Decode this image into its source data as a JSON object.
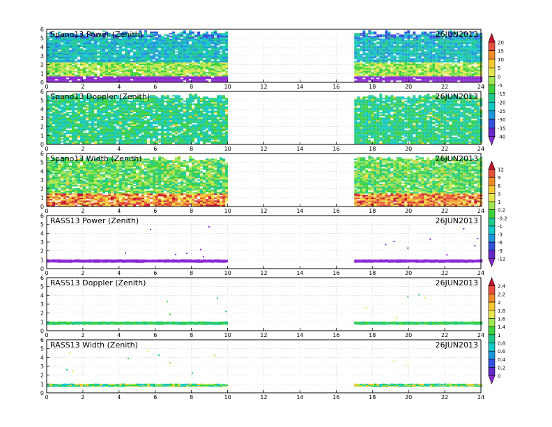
{
  "figure": {
    "panels": [
      {
        "title": "Spano13 Power (Zenith)",
        "date": "26JUN2013",
        "kind": "spano",
        "colorbar": 0
      },
      {
        "title": "Spano13 Doppler (Zenith)",
        "date": "26JUN2013",
        "kind": "spano",
        "colorbar": 0
      },
      {
        "title": "Spano13 Width (Zenith)",
        "date": "26JUN2013",
        "kind": "spano",
        "colorbar": 1
      },
      {
        "title": "RASS13 Power (Zenith)",
        "date": "26JUN2013",
        "kind": "rass",
        "colorbar": 1
      },
      {
        "title": "RASS13 Doppler (Zenith)",
        "date": "26JUN2013",
        "kind": "rass",
        "colorbar": 2
      },
      {
        "title": "RASS13 Width (Zenith)",
        "date": "26JUN2013",
        "kind": "rass",
        "colorbar": 2
      }
    ],
    "colorbars": [
      {
        "labels": [
          "20",
          "15",
          "10",
          "5",
          "0",
          "-5",
          "-15",
          "-20",
          "-25",
          "-30",
          "-35",
          "-40"
        ],
        "colors": [
          "#c8142c",
          "#e6503c",
          "#f08c28",
          "#f5c832",
          "#e6e650",
          "#a0e650",
          "#3cd23c",
          "#1ec88c",
          "#14c8c8",
          "#1e96dc",
          "#3250dc",
          "#6428c8",
          "#8c28d2"
        ]
      },
      {
        "labels": [
          "12",
          "9",
          "6",
          "3",
          "1",
          "0.2",
          "-0.2",
          "-1",
          "-3",
          "-6",
          "-9",
          "-12"
        ],
        "colors": [
          "#c8142c",
          "#e6503c",
          "#f08c28",
          "#f5c832",
          "#e6e650",
          "#a0e650",
          "#3cd23c",
          "#1ec88c",
          "#14c8c8",
          "#1e96dc",
          "#3250dc",
          "#6428c8",
          "#8c28d2"
        ]
      },
      {
        "labels": [
          "2.4",
          "2.2",
          "2",
          "1.8",
          "1.6",
          "1.4",
          "1",
          "0.8",
          "0.6",
          "0.4",
          "0.2",
          "0"
        ],
        "colors": [
          "#c8142c",
          "#e6503c",
          "#f08c28",
          "#f5c832",
          "#e6e650",
          "#a0e650",
          "#3cd23c",
          "#1ec88c",
          "#14c8c8",
          "#1e96dc",
          "#3250dc",
          "#6428c8",
          "#8c28d2"
        ]
      }
    ]
  },
  "chart_data": [
    {
      "type": "heatmap",
      "title": "Spano13 Power (Zenith)",
      "annotation": "26JUN2013",
      "xlim": [
        0,
        24
      ],
      "ylim": [
        0,
        6
      ],
      "xticks": [
        0,
        2,
        4,
        6,
        8,
        10,
        12,
        14,
        16,
        18,
        20,
        22,
        24
      ],
      "yticks": [
        0,
        1,
        2,
        3,
        4,
        5,
        6
      ],
      "grid": true,
      "data_segments_hours": [
        [
          0,
          10
        ],
        [
          17,
          24
        ]
      ],
      "color_scale": [
        -40,
        20
      ]
    },
    {
      "type": "heatmap",
      "title": "Spano13 Doppler (Zenith)",
      "annotation": "26JUN2013",
      "xlim": [
        0,
        24
      ],
      "ylim": [
        0,
        6
      ],
      "xticks": [
        0,
        2,
        4,
        6,
        8,
        10,
        12,
        14,
        16,
        18,
        20,
        22,
        24
      ],
      "yticks": [
        0,
        1,
        2,
        3,
        4,
        5,
        6
      ],
      "grid": true,
      "data_segments_hours": [
        [
          0,
          10
        ],
        [
          17,
          24
        ]
      ],
      "color_scale": [
        -40,
        20
      ]
    },
    {
      "type": "heatmap",
      "title": "Spano13 Width (Zenith)",
      "annotation": "26JUN2013",
      "xlim": [
        0,
        24
      ],
      "ylim": [
        0,
        6
      ],
      "xticks": [
        0,
        2,
        4,
        6,
        8,
        10,
        12,
        14,
        16,
        18,
        20,
        22,
        24
      ],
      "yticks": [
        0,
        1,
        2,
        3,
        4,
        5,
        6
      ],
      "grid": true,
      "data_segments_hours": [
        [
          0,
          10
        ],
        [
          17,
          24
        ]
      ],
      "color_scale": [
        -12,
        12
      ]
    },
    {
      "type": "heatmap",
      "title": "RASS13 Power (Zenith)",
      "annotation": "26JUN2013",
      "xlim": [
        0,
        24
      ],
      "ylim": [
        0,
        6
      ],
      "xticks": [
        0,
        2,
        4,
        6,
        8,
        10,
        12,
        14,
        16,
        18,
        20,
        22,
        24
      ],
      "yticks": [
        0,
        1,
        2,
        3,
        4,
        5,
        6
      ],
      "grid": true,
      "data_segments_hours": [
        [
          0,
          10
        ],
        [
          17,
          24
        ]
      ],
      "main_band_height": 0.8,
      "color_scale": [
        -12,
        12
      ]
    },
    {
      "type": "heatmap",
      "title": "RASS13 Doppler (Zenith)",
      "annotation": "26JUN2013",
      "xlim": [
        0,
        24
      ],
      "ylim": [
        0,
        6
      ],
      "xticks": [
        0,
        2,
        4,
        6,
        8,
        10,
        12,
        14,
        16,
        18,
        20,
        22,
        24
      ],
      "yticks": [
        0,
        1,
        2,
        3,
        4,
        5,
        6
      ],
      "grid": true,
      "data_segments_hours": [
        [
          0,
          10
        ],
        [
          17,
          24
        ]
      ],
      "main_band_height": 0.8,
      "color_scale": [
        0,
        2.4
      ]
    },
    {
      "type": "heatmap",
      "title": "RASS13 Width (Zenith)",
      "annotation": "26JUN2013",
      "xlim": [
        0,
        24
      ],
      "ylim": [
        0,
        6
      ],
      "xticks": [
        0,
        2,
        4,
        6,
        8,
        10,
        12,
        14,
        16,
        18,
        20,
        22,
        24
      ],
      "yticks": [
        0,
        1,
        2,
        3,
        4,
        5,
        6
      ],
      "grid": true,
      "data_segments_hours": [
        [
          0,
          10
        ],
        [
          17,
          24
        ]
      ],
      "main_band_height": 0.8,
      "color_scale": [
        0,
        2.4
      ]
    }
  ]
}
